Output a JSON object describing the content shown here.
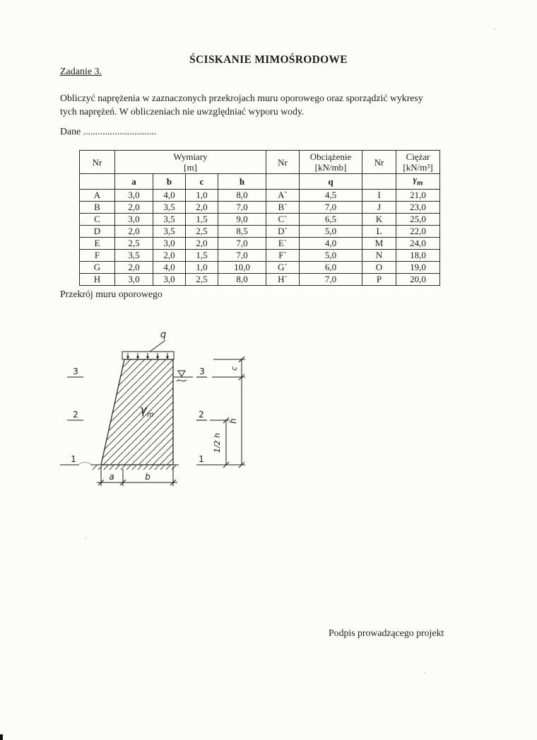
{
  "colors": {
    "paper": "#fcfcfa",
    "ink": "#1c1c1c"
  },
  "page": {
    "title": "ŚCISKANIE MIMOŚRODOWE",
    "task_label": "Zadanie 3.",
    "paragraph_line1": "Obliczyć naprężenia w zaznaczonych przekrojach muru oporowego oraz sporządzić wykresy",
    "paragraph_line2": "tych naprężeń. W obliczeniach nie uwzględniać wyporu wody.",
    "dane_label": "Dane ..............................",
    "section_label": "Przekrój muru oporowego",
    "footer": "Podpis prowadzącego projekt"
  },
  "table": {
    "header": {
      "col_nr": "Nr",
      "col_wymiary": "Wymiary",
      "col_wymiary_unit": "[m]",
      "col_obciazenie": "Obciążenie",
      "col_obciazenie_unit": "[kN/mb]",
      "col_ciezar": "Ciężar",
      "col_ciezar_unit": "[kN/m³]",
      "sub_a": "a",
      "sub_b": "b",
      "sub_c": "c",
      "sub_h": "h",
      "sub_q": "q",
      "sub_gamma": "γ",
      "sub_gamma_sub": "m"
    },
    "rows": [
      [
        "A",
        "3,0",
        "4,0",
        "1,0",
        "8,0",
        "A`",
        "4,5",
        "I",
        "21,0"
      ],
      [
        "B",
        "2,0",
        "3,5",
        "2,0",
        "7,0",
        "B`",
        "7,0",
        "J",
        "23,0"
      ],
      [
        "C",
        "3,0",
        "3,5",
        "1,5",
        "9,0",
        "C`",
        "6,5",
        "K",
        "25,0"
      ],
      [
        "D",
        "2,0",
        "3,5",
        "2,5",
        "8,5",
        "D`",
        "5,0",
        "L",
        "22,0"
      ],
      [
        "E",
        "2,5",
        "3,0",
        "2,0",
        "7,0",
        "E`",
        "4,0",
        "M",
        "24,0"
      ],
      [
        "F",
        "3,5",
        "2,0",
        "1,5",
        "7,0",
        "F`",
        "5,0",
        "N",
        "18,0"
      ],
      [
        "G",
        "2,0",
        "4,0",
        "1,0",
        "10,0",
        "G`",
        "6,0",
        "O",
        "19,0"
      ],
      [
        "H",
        "3,0",
        "3,0",
        "2,5",
        "8,0",
        "H`",
        "7,0",
        "P",
        "20,0"
      ]
    ]
  },
  "figure": {
    "load_label": "q",
    "gamma_label": "γ",
    "gamma_sub": "m",
    "levels_left": [
      "3",
      "2",
      "1"
    ],
    "levels_right": [
      "3",
      "2",
      "1"
    ],
    "dim_a": "a",
    "dim_b": "b",
    "dim_c": "c",
    "dim_h": "h",
    "dim_half_h": "1/2 h"
  }
}
